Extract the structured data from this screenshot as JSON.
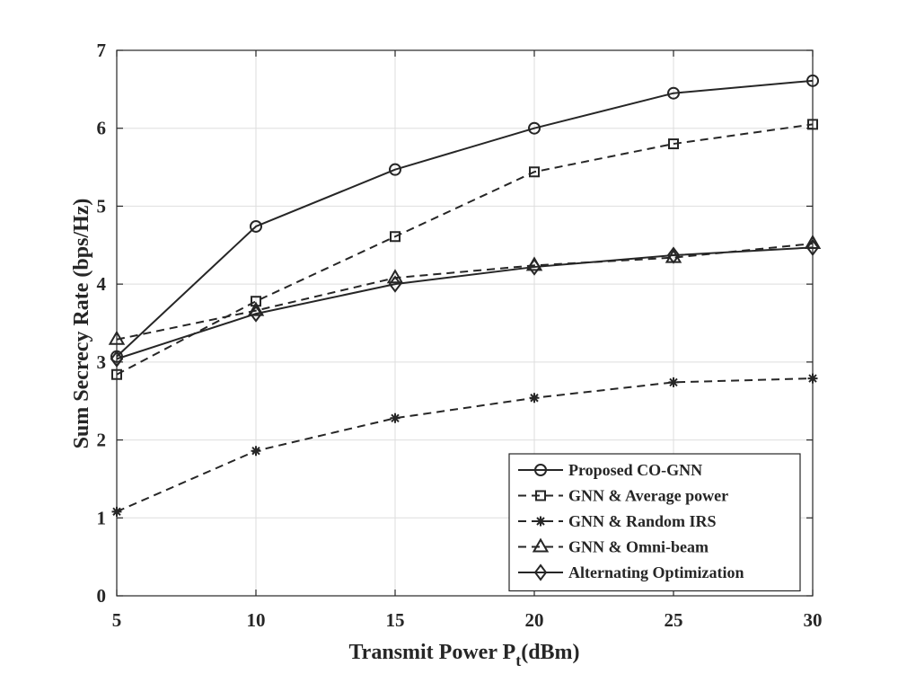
{
  "chart_data": {
    "type": "line",
    "title": "",
    "xlabel_main": "Transmit Power P",
    "xlabel_sub": "t",
    "xlabel_unit": "(dBm)",
    "ylabel": "Sum Secrecy Rate (bps/Hz)",
    "xlim": [
      5,
      30
    ],
    "ylim": [
      0,
      7
    ],
    "grid": true,
    "legend_position": "bottom-right",
    "x": [
      5,
      10,
      15,
      20,
      25,
      30
    ],
    "x_ticks": [
      "5",
      "10",
      "15",
      "20",
      "25",
      "30"
    ],
    "y_ticks": [
      "0",
      "1",
      "2",
      "3",
      "4",
      "5",
      "6",
      "7"
    ],
    "series": [
      {
        "name": "Proposed CO-GNN",
        "marker": "circle",
        "dash": "solid",
        "values": [
          3.07,
          4.74,
          5.47,
          6.0,
          6.45,
          6.61
        ]
      },
      {
        "name": "GNN & Average power",
        "marker": "square",
        "dash": "dashed",
        "values": [
          2.84,
          3.78,
          4.61,
          5.44,
          5.8,
          6.05
        ]
      },
      {
        "name": "GNN & Random IRS",
        "marker": "asterisk",
        "dash": "dashed",
        "values": [
          1.08,
          1.86,
          2.28,
          2.54,
          2.74,
          2.79
        ]
      },
      {
        "name": "GNN & Omni-beam",
        "marker": "triangle",
        "dash": "dashed",
        "values": [
          3.29,
          3.66,
          4.08,
          4.24,
          4.34,
          4.52
        ]
      },
      {
        "name": "Alternating Optimization",
        "marker": "diamond",
        "dash": "solid",
        "values": [
          3.04,
          3.62,
          4.0,
          4.22,
          4.37,
          4.47
        ]
      }
    ]
  }
}
